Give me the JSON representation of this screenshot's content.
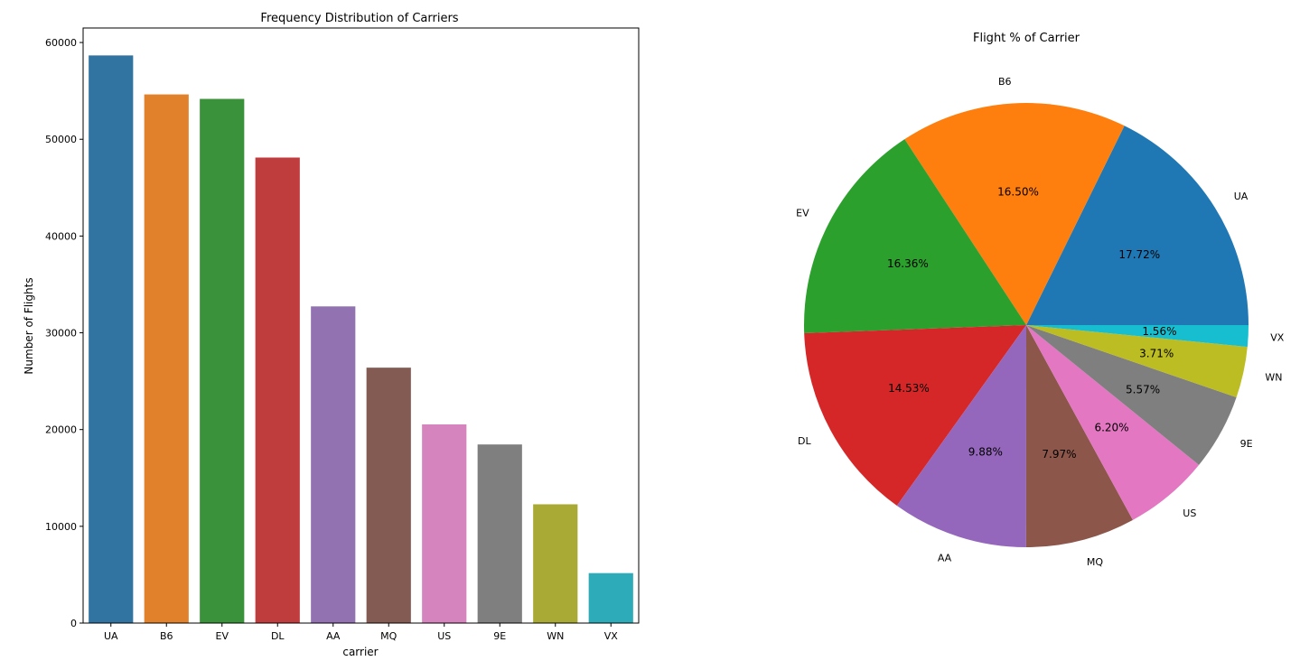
{
  "chart_data": [
    {
      "type": "bar",
      "title": "Frequency Distribution of Carriers",
      "xlabel": "carrier",
      "ylabel": "Number of Flights",
      "ylim": [
        0,
        61500
      ],
      "yticks": [
        0,
        10000,
        20000,
        30000,
        40000,
        50000,
        60000
      ],
      "ytick_labels": [
        "0",
        "10000",
        "20000",
        "30000",
        "40000",
        "50000",
        "60000"
      ],
      "categories": [
        "UA",
        "B6",
        "EV",
        "DL",
        "AA",
        "MQ",
        "US",
        "9E",
        "WN",
        "VX"
      ],
      "values": [
        58665,
        54635,
        54173,
        48110,
        32729,
        26397,
        20536,
        18460,
        12275,
        5162
      ],
      "colors": [
        "#3274a1",
        "#e1812c",
        "#3a923a",
        "#c03d3e",
        "#9372b2",
        "#845b53",
        "#d684bd",
        "#7f7f7f",
        "#a9aa35",
        "#2eabb8"
      ],
      "grid": false
    },
    {
      "type": "pie",
      "title": "Flight % of Carrier",
      "labels": [
        "UA",
        "B6",
        "EV",
        "DL",
        "AA",
        "MQ",
        "US",
        "9E",
        "WN",
        "VX"
      ],
      "percent_labels": [
        "17.72%",
        "16.50%",
        "16.36%",
        "14.53%",
        "9.88%",
        "7.97%",
        "6.20%",
        "5.57%",
        "3.71%",
        "1.56%"
      ],
      "values": [
        17.72,
        16.5,
        16.36,
        14.53,
        9.88,
        7.97,
        6.2,
        5.57,
        3.71,
        1.56
      ],
      "colors": [
        "#1f77b4",
        "#ff7f0e",
        "#2ca02c",
        "#d62728",
        "#9467bd",
        "#8c564b",
        "#e377c2",
        "#7f7f7f",
        "#bcbd22",
        "#17becf"
      ],
      "start": "0 degrees (3 o'clock), counter-clockwise"
    }
  ]
}
